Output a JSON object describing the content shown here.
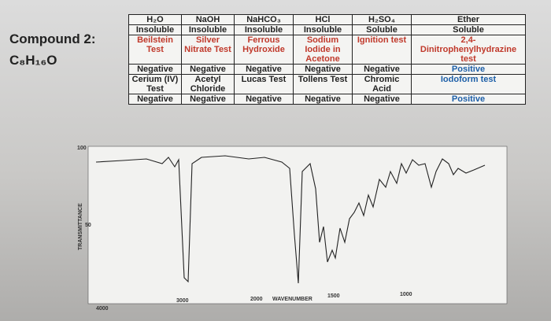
{
  "compound": {
    "label": "Compound 2:",
    "formula": "C₈H₁₆O"
  },
  "table": {
    "rows": [
      [
        "H₂O",
        "NaOH",
        "NaHCO₃",
        "HCl",
        "H₂SO₄",
        "Ether"
      ],
      [
        "Insoluble",
        "Insoluble",
        "Insoluble",
        "Insoluble",
        "Soluble",
        "Soluble"
      ],
      [
        "Beilstein Test",
        "Silver Nitrate Test",
        "Ferrous Hydroxide",
        "Sodium Iodide in Acetone",
        "Ignition test",
        "2,4-Dinitrophenylhydrazine test"
      ],
      [
        "Negative",
        "Negative",
        "Negative",
        "Negative",
        "Negative",
        "Positive"
      ],
      [
        "Cerium (IV) Test",
        "Acetyl Chloride",
        "Lucas Test",
        "Tollens Test",
        "Chromic Acid",
        "Iodoform test"
      ],
      [
        "Negative",
        "Negative",
        "Negative",
        "Negative",
        "Negative",
        "Positive"
      ]
    ]
  },
  "spectrum": {
    "y_axis_label": "TRANSMITTANCE",
    "x_axis_label": "WAVENUMBER",
    "y_ticks": [
      "100",
      "50"
    ],
    "x_ticks": [
      "4000",
      "3000",
      "2000",
      "1500",
      "1000"
    ]
  }
}
